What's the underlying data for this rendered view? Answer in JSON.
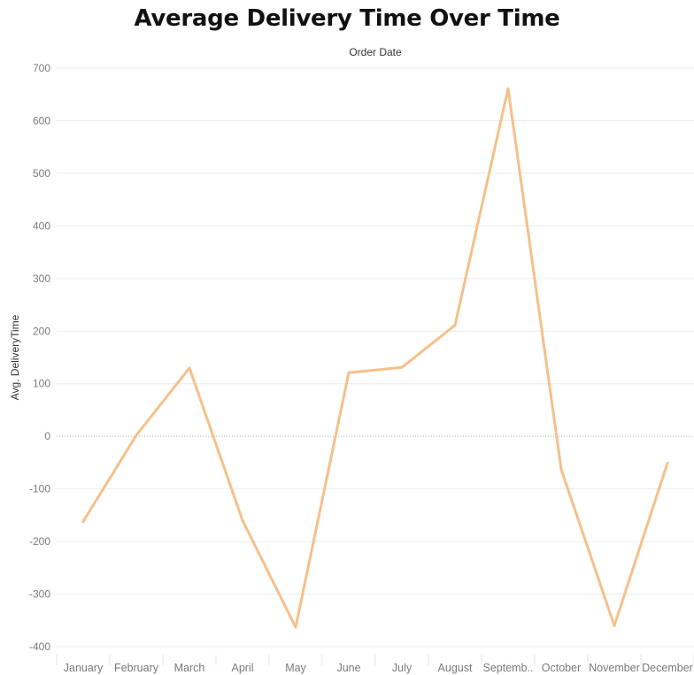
{
  "chart_data": {
    "type": "line",
    "title": "Average Delivery Time Over Time",
    "xlabel": "Order Date",
    "ylabel": "Avg. DeliveryTime",
    "categories": [
      "January",
      "February",
      "March",
      "April",
      "May",
      "June",
      "July",
      "August",
      "September",
      "October",
      "November",
      "December"
    ],
    "category_display": [
      "January",
      "February",
      "March",
      "April",
      "May",
      "June",
      "July",
      "August",
      "Septemb..",
      "October",
      "November",
      "December"
    ],
    "series": [
      {
        "name": "",
        "values": [
          -162,
          2,
          130,
          -160,
          -363,
          121,
          131,
          211,
          661,
          -63,
          -360,
          -51
        ]
      }
    ],
    "ylim": [
      -400,
      700
    ],
    "yticks": [
      700,
      600,
      500,
      400,
      300,
      200,
      100,
      0,
      -100,
      -200,
      -300,
      -400
    ],
    "grid": true,
    "legend": "none",
    "line_color": "#f5c08a",
    "zero_line_color": "#b0b0b0",
    "grid_color": "#ececec"
  }
}
